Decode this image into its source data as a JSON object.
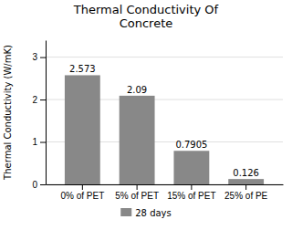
{
  "chart_data": {
    "type": "bar",
    "title": "Thermal Conductivity Of\nConcrete",
    "ylabel": "Thermal Conductivity (W/mK)",
    "categories": [
      "0% of PET",
      "5% of PET",
      "15% of PET",
      "25% of PE"
    ],
    "series": [
      {
        "name": "28 days",
        "color": "#888888",
        "values": [
          2.573,
          2.09,
          0.7905,
          0.126
        ]
      }
    ],
    "ylim": [
      0,
      3.4
    ],
    "yticks": [
      0,
      1,
      2,
      3
    ],
    "grid": true,
    "data_labels": true,
    "legend": "bottom"
  }
}
